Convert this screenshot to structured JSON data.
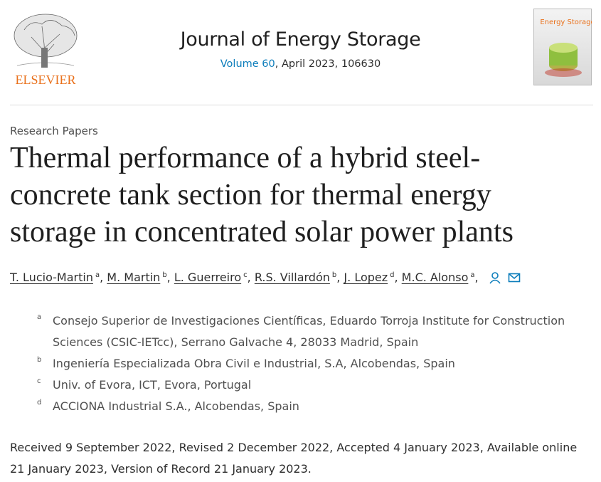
{
  "header": {
    "publisher": "ELSEVIER",
    "journal": "Journal of Energy Storage",
    "volume": "Volume 60",
    "issue_info": ", April 2023, 106630",
    "cover_title": "Energy Storage"
  },
  "article": {
    "section": "Research Papers",
    "title": "Thermal performance of a hybrid steel-concrete tank section for thermal energy storage in concentrated solar power plants",
    "authors": [
      {
        "name": "T. Lucio-Martin",
        "affiliation": "a"
      },
      {
        "name": "M. Martin",
        "affiliation": "b"
      },
      {
        "name": "L. Guerreiro",
        "affiliation": "c"
      },
      {
        "name": "R.S. Villardón",
        "affiliation": "b"
      },
      {
        "name": "J. Lopez",
        "affiliation": "d"
      },
      {
        "name": "M.C. Alonso",
        "affiliation": "a"
      }
    ],
    "affiliations": [
      {
        "label": "a",
        "text": "Consejo Superior de Investigaciones Científicas, Eduardo Torroja Institute for Construction Sciences (CSIC-IETcc), Serrano Galvache 4, 28033 Madrid, Spain"
      },
      {
        "label": "b",
        "text": "Ingeniería Especializada Obra Civil e Industrial, S.A, Alcobendas, Spain"
      },
      {
        "label": "c",
        "text": "Univ. of Evora, ICT, Evora, Portugal"
      },
      {
        "label": "d",
        "text": "ACCIONA Industrial S.A., Alcobendas, Spain"
      }
    ],
    "dates": "Received 9 September 2022, Revised 2 December 2022, Accepted 4 January 2023, Available online 21 January 2023, Version of Record 21 January 2023."
  }
}
